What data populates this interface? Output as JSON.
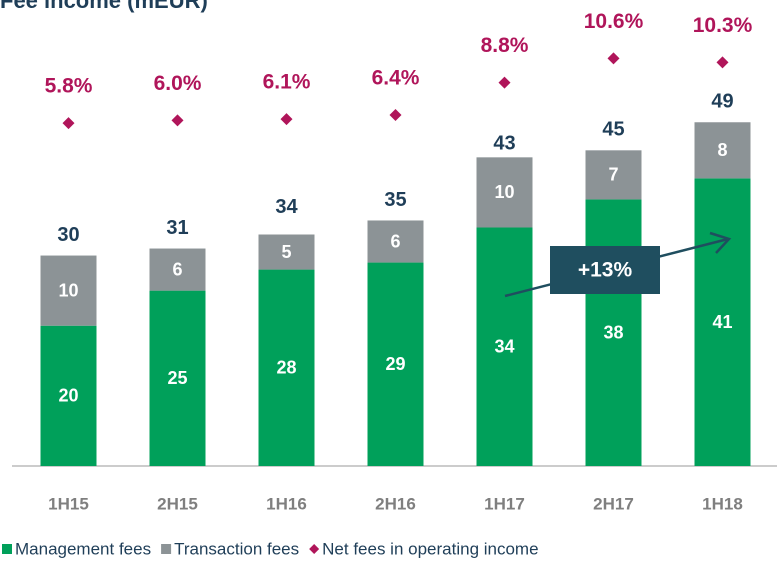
{
  "chart_data": {
    "type": "bar",
    "title": "Fee income (mEUR)",
    "categories": [
      "1H15",
      "2H15",
      "1H16",
      "2H16",
      "1H17",
      "2H17",
      "1H18"
    ],
    "series": [
      {
        "name": "Management fees",
        "color": "#00a05a",
        "values": [
          20,
          25,
          28,
          29,
          34,
          38,
          41
        ]
      },
      {
        "name": "Transaction fees",
        "color": "#8c9396",
        "values": [
          10,
          6,
          5,
          6,
          10,
          7,
          8
        ]
      },
      {
        "name": "Net fees in operating income",
        "color": "#b0155a",
        "axis": "y2",
        "values": [
          5.8,
          6.0,
          6.1,
          6.4,
          8.8,
          10.6,
          10.3
        ],
        "value_labels": [
          "5.8%",
          "6.0%",
          "6.1%",
          "6.4%",
          "8.8%",
          "10.6%",
          "10.3%"
        ]
      }
    ],
    "totals": [
      30,
      31,
      34,
      35,
      43,
      45,
      49
    ],
    "ylim": [
      0,
      66
    ],
    "y2lim": [
      -19.6,
      14.7
    ],
    "annotation": "+13%"
  }
}
